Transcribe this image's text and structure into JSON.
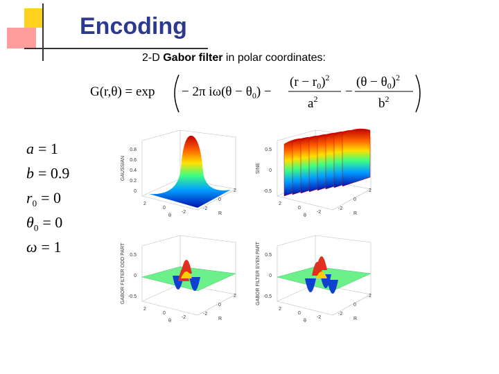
{
  "header": {
    "title": "Encoding"
  },
  "subtitle": {
    "prefix": "2-D ",
    "bold": "Gabor filter",
    "suffix": " in polar coordinates:"
  },
  "equation": {
    "lhs": "G(r,θ) = exp",
    "term1": "− 2π iω(θ − θ",
    "sub0": "0",
    "close1": ") −",
    "num1": "(r − r",
    "num1sub": "0",
    "num1end": ")",
    "den1": "a",
    "exp": "2",
    "minus": "−",
    "num2": "(θ − θ",
    "num2sub": "0",
    "num2end": ")",
    "den2": "b"
  },
  "parameters": [
    {
      "name": "a",
      "sub": "",
      "value": "= 1"
    },
    {
      "name": "b",
      "sub": "",
      "value": "= 0.9"
    },
    {
      "name": "r",
      "sub": "0",
      "value": "= 0"
    },
    {
      "name": "θ",
      "sub": "0",
      "value": "= 0"
    },
    {
      "name": "ω",
      "sub": "",
      "value": "= 1"
    }
  ],
  "plots": [
    {
      "ylabel": "GAUSSIAN",
      "yticks": [
        "0.8",
        "0.6",
        "0.4",
        "0.2",
        "0"
      ],
      "theta_ticks": [
        "2",
        "0",
        "-2"
      ],
      "r_ticks": [
        "-2",
        "0",
        "2"
      ],
      "theta_label": "θ",
      "r_label": "R"
    },
    {
      "ylabel": "SINE",
      "yticks": [
        "0.5",
        "0",
        "-0.5"
      ],
      "theta_ticks": [
        "2",
        "0",
        "-2"
      ],
      "r_ticks": [
        "-2",
        "0",
        "2"
      ],
      "theta_label": "θ",
      "r_label": "R"
    },
    {
      "ylabel": "GABOR FILTER ODD PART",
      "yticks": [
        "0.5",
        "0",
        "-0.5"
      ],
      "theta_ticks": [
        "2",
        "0",
        "-2"
      ],
      "r_ticks": [
        "-2",
        "0",
        "2"
      ],
      "theta_label": "θ",
      "r_label": "R"
    },
    {
      "ylabel": "GABOR FILTER EVEN PART",
      "yticks": [
        "0.5",
        "0",
        "-0.5"
      ],
      "theta_ticks": [
        "2",
        "0",
        "-2"
      ],
      "r_ticks": [
        "-2",
        "0",
        "2"
      ],
      "theta_label": "θ",
      "r_label": "R"
    }
  ]
}
